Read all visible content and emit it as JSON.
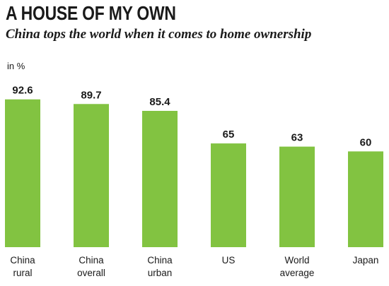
{
  "chart_data": {
    "type": "bar",
    "title": "A HOUSE OF MY OWN",
    "subtitle": "China tops the world when it comes to home ownership",
    "unit": "in %",
    "categories": [
      [
        "China",
        "rural"
      ],
      [
        "China",
        "overall"
      ],
      [
        "China",
        "urban"
      ],
      [
        "US"
      ],
      [
        "World",
        "average"
      ],
      [
        "Japan"
      ]
    ],
    "values": [
      92.6,
      89.7,
      85.4,
      65,
      63,
      60
    ],
    "value_labels": [
      "92.6",
      "89.7",
      "85.4",
      "65",
      "63",
      "60"
    ],
    "ylim": [
      0,
      100
    ],
    "grid": false,
    "legend": "none",
    "bar_color": "#82c341"
  }
}
